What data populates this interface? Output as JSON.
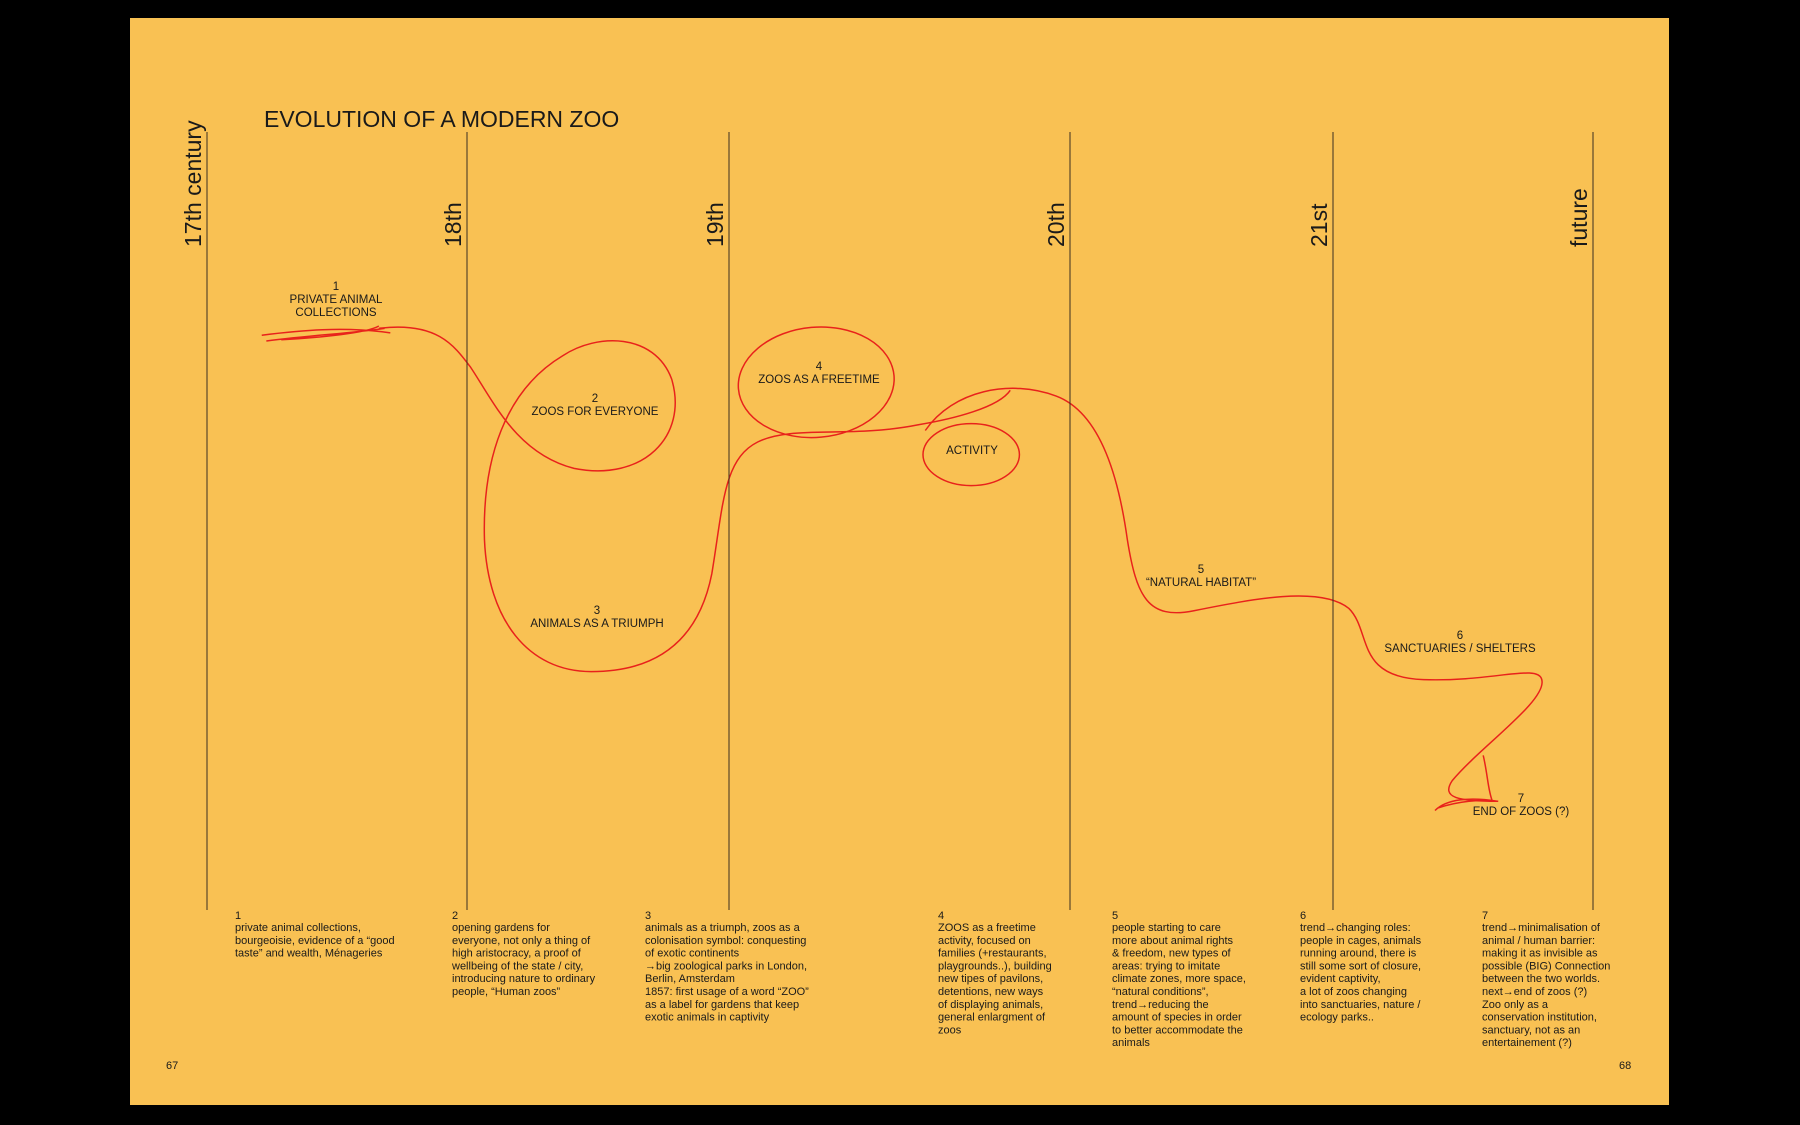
{
  "title": "EVOLUTION OF A MODERN ZOO",
  "centuries": [
    "17th century",
    "18th",
    "19th",
    "20th",
    "21st",
    "future"
  ],
  "nodes": [
    {
      "number": "1",
      "lines": [
        "PRIVATE ANIMAL",
        "COLLECTIONS"
      ]
    },
    {
      "number": "2",
      "lines": [
        "ZOOS FOR EVERYONE"
      ]
    },
    {
      "number": "3",
      "lines": [
        "ANIMALS AS A TRIUMPH"
      ]
    },
    {
      "number": "4",
      "lines": [
        "ZOOS AS A FREETIME"
      ]
    },
    {
      "lines": [
        "ACTIVITY"
      ]
    },
    {
      "number": "5",
      "lines": [
        "“NATURAL HABITAT”"
      ]
    },
    {
      "number": "6",
      "lines": [
        "SANCTUARIES / SHELTERS"
      ]
    },
    {
      "number": "7",
      "lines": [
        "END OF ZOOS (?)"
      ]
    }
  ],
  "notes": [
    {
      "number": "1",
      "lines": [
        "private animal collections,",
        "bourgeoisie, evidence of a “good",
        "taste” and wealth, Ménageries"
      ]
    },
    {
      "number": "2",
      "lines": [
        "opening gardens for",
        "everyone, not only a thing of",
        "high aristocracy, a proof of",
        "wellbeing of the state / city,",
        "introducing nature to ordinary",
        "people, “Human zoos”"
      ]
    },
    {
      "number": "3",
      "lines": [
        "animals as a triumph, zoos as a",
        "colonisation symbol: conquesting",
        "of exotic continents",
        "→big zoological parks in London,",
        "Berlin, Amsterdam",
        "1857: first usage of a word “ZOO”",
        "as a label for gardens that keep",
        "exotic animals in captivity"
      ]
    },
    {
      "number": "4",
      "lines": [
        "ZOOS as a freetime",
        "activity, focused on",
        "families (+restaurants,",
        "playgrounds..), building",
        "new tipes of pavilons,",
        "detentions, new ways",
        "of displaying animals,",
        "general enlargment of",
        "zoos"
      ]
    },
    {
      "number": "5",
      "lines": [
        "people starting to care",
        "more about animal rights",
        "& freedom, new types of",
        "areas: trying to imitate",
        "climate zones, more space,",
        "“natural conditions”,",
        "trend→reducing the",
        "amount of species in order",
        "to better accommodate the",
        "animals"
      ]
    },
    {
      "number": "6",
      "lines": [
        "trend→changing roles:",
        "people in cages, animals",
        "running around, there is",
        "still some sort of closure,",
        "evident captivity,",
        "a lot of zoos changing",
        "into sanctuaries, nature /",
        "ecology parks.."
      ]
    },
    {
      "number": "7",
      "lines": [
        "trend→minimalisation of",
        "animal / human barrier:",
        "making it as invisible as",
        "possible (BIG) Connection",
        "between the two worlds.",
        "next→end of zoos (?)",
        "Zoo only as a",
        "conservation institution,",
        "sanctuary, not as an",
        "entertainement (?)"
      ]
    }
  ],
  "page_numbers": [
    "67",
    "68"
  ]
}
